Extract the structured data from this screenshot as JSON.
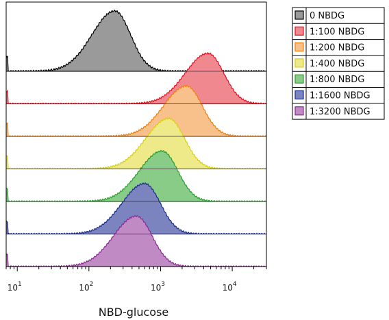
{
  "chart_data": {
    "type": "area",
    "subtype": "staggered-histogram-overlay",
    "xlabel": "NBD-glucose",
    "xscale": "log",
    "xlim": [
      7,
      30000
    ],
    "xticks": [
      {
        "value": 10,
        "base": "10",
        "exp": "1"
      },
      {
        "value": 100,
        "base": "10",
        "exp": "2"
      },
      {
        "value": 1000,
        "base": "10",
        "exp": "3"
      },
      {
        "value": 10000,
        "base": "10",
        "exp": "4"
      }
    ],
    "yaxis": "none",
    "legend_position": "right",
    "series": [
      {
        "name": "0 NBDG",
        "color": "#808080",
        "fill": "#9a9a9a",
        "edge": "#000000",
        "peak": 230
      },
      {
        "name": "1:100 NBDG",
        "color": "#e8313c",
        "fill": "#f08890",
        "edge": "#e01020",
        "peak": 4600
      },
      {
        "name": "1:200 NBDG",
        "color": "#f5a040",
        "fill": "#f8c08a",
        "edge": "#f08010",
        "peak": 2300
      },
      {
        "name": "1:400 NBDG",
        "color": "#e8e040",
        "fill": "#eeea8a",
        "edge": "#d8d010",
        "peak": 1300
      },
      {
        "name": "1:800 NBDG",
        "color": "#3cb040",
        "fill": "#88cc88",
        "edge": "#2aa030",
        "peak": 1050
      },
      {
        "name": "1:1600 NBDG",
        "color": "#2c3c9c",
        "fill": "#7c84c0",
        "edge": "#1c2c8c",
        "peak": 600
      },
      {
        "name": "1:3200 NBDG",
        "color": "#a04aa8",
        "fill": "#c08ac4",
        "edge": "#8c2c94",
        "peak": 460
      }
    ]
  }
}
